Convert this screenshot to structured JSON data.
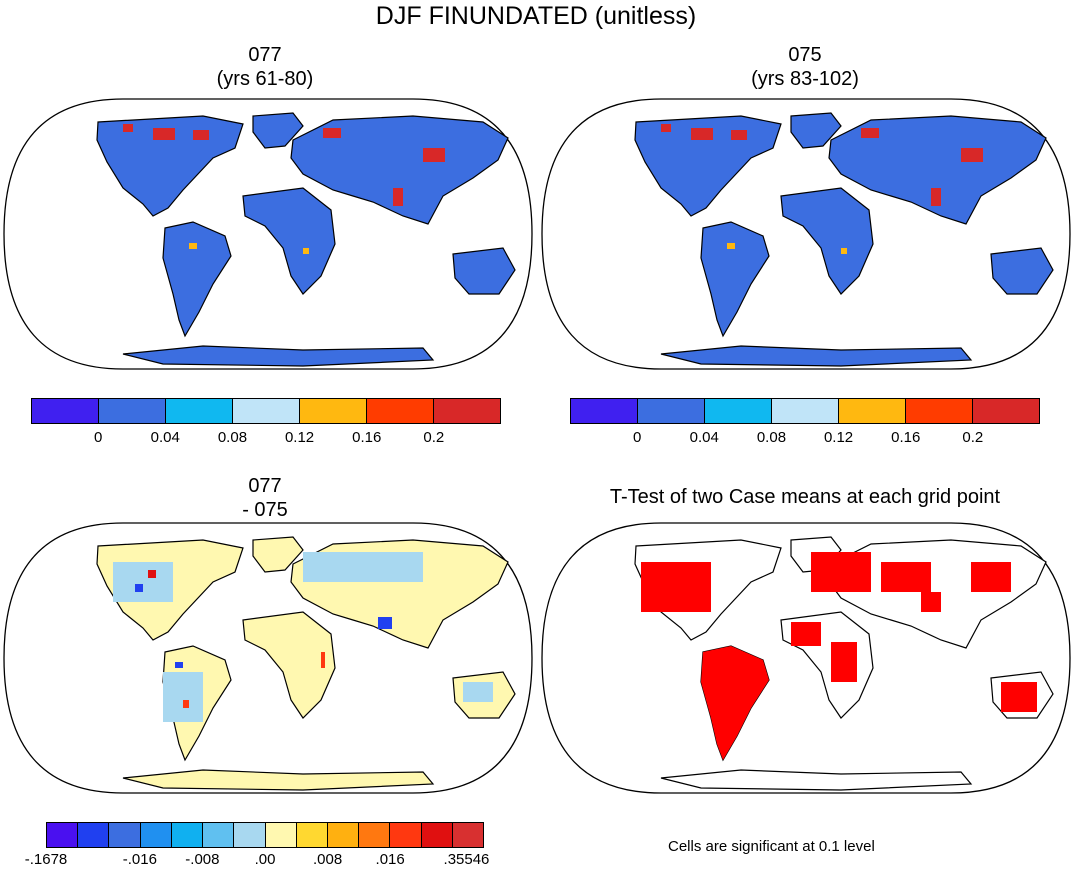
{
  "main_title": "DJF FINUNDATED (unitless)",
  "panels": {
    "top_left": {
      "title_line1": "077",
      "title_line2": "(yrs 61-80)"
    },
    "top_right": {
      "title_line1": "075",
      "title_line2": "(yrs 83-102)"
    },
    "bottom_left": {
      "title_line1": "077",
      "title_line2": "- 075"
    },
    "bottom_right": {
      "title": "T-Test of two Case means at each grid point",
      "note": "Cells are significant at 0.1 level"
    }
  },
  "colorbar_abs": {
    "colors": [
      "#4020f0",
      "#3c6ee0",
      "#10b8f0",
      "#c0e4f8",
      "#ffb810",
      "#ff3c00",
      "#d82828"
    ],
    "tick_labels": [
      "0",
      "0.04",
      "0.08",
      "0.12",
      "0.16",
      "0.2"
    ]
  },
  "colorbar_diff": {
    "colors": [
      "#4a10f0",
      "#2040f0",
      "#3c6ee0",
      "#2090f0",
      "#10b0f0",
      "#60c0f0",
      "#a8d8f0",
      "#fff8b0",
      "#ffd830",
      "#ffb010",
      "#ff7810",
      "#ff3810",
      "#e01010",
      "#d83030"
    ],
    "tick_labels": [
      "-.1678",
      "-.016",
      "-.008",
      ".00",
      ".008",
      ".016",
      ".35546"
    ]
  },
  "map_colors": {
    "land_abs": "#3c6ee0",
    "land_diff": "#fff8b0",
    "ttest_fill": "#ff0000",
    "ocean": "#ffffff",
    "coast": "#000000"
  }
}
